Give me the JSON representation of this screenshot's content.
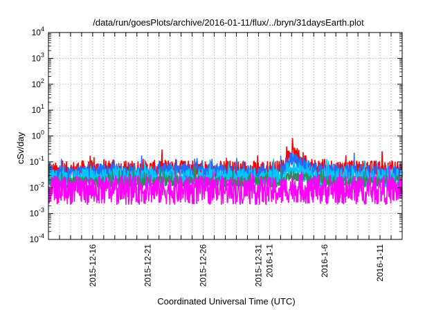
{
  "chart_data": {
    "type": "line",
    "title": "/data/run/goesPlots/archive/2016-01-11/flux/../bryn/31daysEarth.plot",
    "xlabel": "Coordinated Universal Time (UTC)",
    "ylabel": "cSv/day",
    "yscale": "log",
    "ylim": [
      0.0001,
      10000
    ],
    "xlim": [
      "2015-12-12",
      "2016-01-13"
    ],
    "grid": true,
    "legend": "none",
    "y_ticks": [
      {
        "base": "10",
        "exp": "4"
      },
      {
        "base": "10",
        "exp": "3"
      },
      {
        "base": "10",
        "exp": "2"
      },
      {
        "base": "10",
        "exp": "1"
      },
      {
        "base": "10",
        "exp": "0"
      },
      {
        "base": "10",
        "exp": "-1"
      },
      {
        "base": "10",
        "exp": "-2"
      },
      {
        "base": "10",
        "exp": "-3"
      },
      {
        "base": "10",
        "exp": "-4"
      }
    ],
    "x_tick_labels": [
      "2015-12-16",
      "2015-12-21",
      "2015-12-26",
      "2015-12-31",
      "2016-1-1",
      "2016-1-6",
      "2016-1-11"
    ],
    "series": [
      {
        "color": "#ff0000",
        "x": [
          "2015-12-12",
          "2015-12-15",
          "2015-12-18",
          "2015-12-21",
          "2015-12-24",
          "2015-12-27",
          "2015-12-30",
          "2016-01-02",
          "2016-01-03",
          "2016-01-05",
          "2016-01-08",
          "2016-01-11",
          "2016-01-13"
        ],
        "y": [
          0.04,
          0.05,
          0.05,
          0.05,
          0.06,
          0.05,
          0.05,
          0.05,
          0.2,
          0.06,
          0.05,
          0.05,
          0.05
        ]
      },
      {
        "color": "#1f6fff",
        "x": [
          "2015-12-12",
          "2015-12-15",
          "2015-12-18",
          "2015-12-21",
          "2015-12-24",
          "2015-12-27",
          "2015-12-30",
          "2016-01-02",
          "2016-01-03",
          "2016-01-05",
          "2016-01-08",
          "2016-01-11",
          "2016-01-13"
        ],
        "y": [
          0.03,
          0.035,
          0.04,
          0.035,
          0.04,
          0.035,
          0.035,
          0.035,
          0.12,
          0.04,
          0.035,
          0.035,
          0.035
        ]
      },
      {
        "color": "#00c8ff",
        "x": [
          "2015-12-12",
          "2015-12-15",
          "2015-12-18",
          "2015-12-21",
          "2015-12-24",
          "2015-12-27",
          "2015-12-30",
          "2016-01-02",
          "2016-01-03",
          "2016-01-05",
          "2016-01-08",
          "2016-01-11",
          "2016-01-13"
        ],
        "y": [
          0.022,
          0.024,
          0.025,
          0.024,
          0.025,
          0.024,
          0.024,
          0.024,
          0.05,
          0.025,
          0.024,
          0.024,
          0.024
        ]
      },
      {
        "color": "#2e8b57",
        "x": [
          "2015-12-12",
          "2015-12-15",
          "2015-12-18",
          "2015-12-21",
          "2015-12-24",
          "2015-12-27",
          "2015-12-30",
          "2016-01-02",
          "2016-01-03",
          "2016-01-05",
          "2016-01-08",
          "2016-01-11",
          "2016-01-13"
        ],
        "y": [
          0.016,
          0.017,
          0.017,
          0.017,
          0.018,
          0.017,
          0.017,
          0.017,
          0.03,
          0.018,
          0.017,
          0.017,
          0.017
        ]
      },
      {
        "color": "#ff00ff",
        "x": [
          "2015-12-12",
          "2015-12-15",
          "2015-12-18",
          "2015-12-21",
          "2015-12-24",
          "2015-12-27",
          "2015-12-30",
          "2016-01-02",
          "2016-01-03",
          "2016-01-05",
          "2016-01-08",
          "2016-01-11",
          "2016-01-13"
        ],
        "y": [
          0.008,
          0.008,
          0.008,
          0.008,
          0.008,
          0.008,
          0.008,
          0.007,
          0.01,
          0.008,
          0.008,
          0.008,
          0.008
        ]
      }
    ]
  }
}
